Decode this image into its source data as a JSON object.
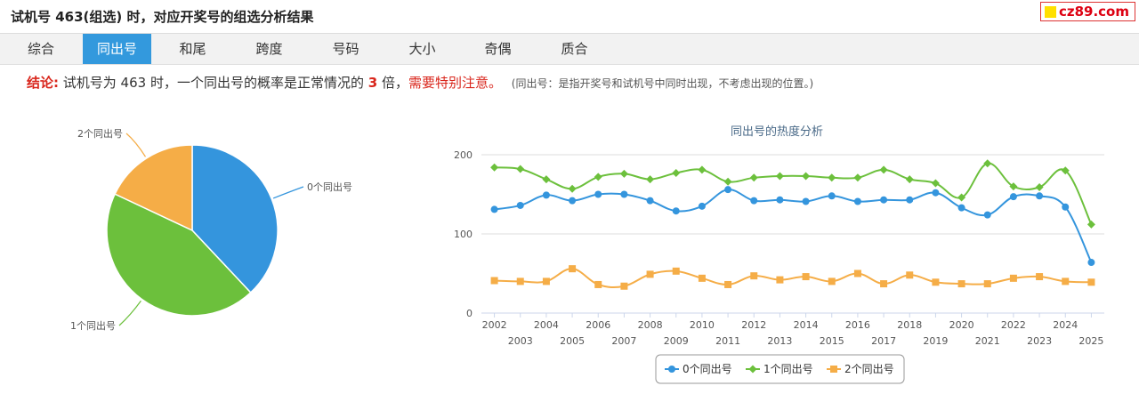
{
  "header": {
    "title": "试机号 463(组选) 时，对应开奖号的组选分析结果",
    "badge": "cz89.com"
  },
  "tabs": [
    "综合",
    "同出号",
    "和尾",
    "跨度",
    "号码",
    "大小",
    "奇偶",
    "质合"
  ],
  "active_tab": 1,
  "conclusion": {
    "label": "结论:",
    "text_before": "试机号为 463 时，一个同出号的概率是正常情况的",
    "multiple": "3",
    "text_after": "倍，",
    "warning": "需要特别注意。",
    "note": "(同出号：是指开奖号和试机号中同时出现，不考虑出现的位置。)"
  },
  "chart_data": [
    {
      "type": "pie",
      "labels": [
        "0个同出号",
        "1个同出号",
        "2个同出号"
      ],
      "values": [
        38,
        44,
        18
      ],
      "colors": [
        "#3495dd",
        "#6cc03c",
        "#f5ad47"
      ]
    },
    {
      "type": "line",
      "title": "同出号的热度分析",
      "x": [
        "2002",
        "2003",
        "2004",
        "2005",
        "2006",
        "2007",
        "2008",
        "2009",
        "2010",
        "2011",
        "2012",
        "2013",
        "2014",
        "2015",
        "2016",
        "2017",
        "2018",
        "2019",
        "2020",
        "2021",
        "2022",
        "2023",
        "2024",
        "2025"
      ],
      "ylim": [
        0,
        200
      ],
      "yticks": [
        0,
        100,
        200
      ],
      "series": [
        {
          "name": "0个同出号",
          "color": "#3495dd",
          "marker": "circle",
          "values": [
            131,
            136,
            149,
            142,
            150,
            150,
            142,
            129,
            135,
            156,
            142,
            143,
            141,
            148,
            141,
            143,
            143,
            152,
            133,
            124,
            147,
            148,
            134,
            64
          ]
        },
        {
          "name": "1个同出号",
          "color": "#6cc03c",
          "marker": "diamond",
          "values": [
            184,
            182,
            169,
            157,
            172,
            176,
            169,
            177,
            181,
            166,
            171,
            173,
            173,
            171,
            171,
            181,
            169,
            164,
            146,
            189,
            160,
            159,
            180,
            112
          ]
        },
        {
          "name": "2个同出号",
          "color": "#f5ad47",
          "marker": "square",
          "values": [
            41,
            40,
            40,
            56,
            36,
            34,
            49,
            53,
            44,
            36,
            47,
            42,
            46,
            40,
            50,
            37,
            48,
            39,
            37,
            37,
            44,
            46,
            40,
            39
          ]
        }
      ],
      "legend": "bottom"
    }
  ]
}
